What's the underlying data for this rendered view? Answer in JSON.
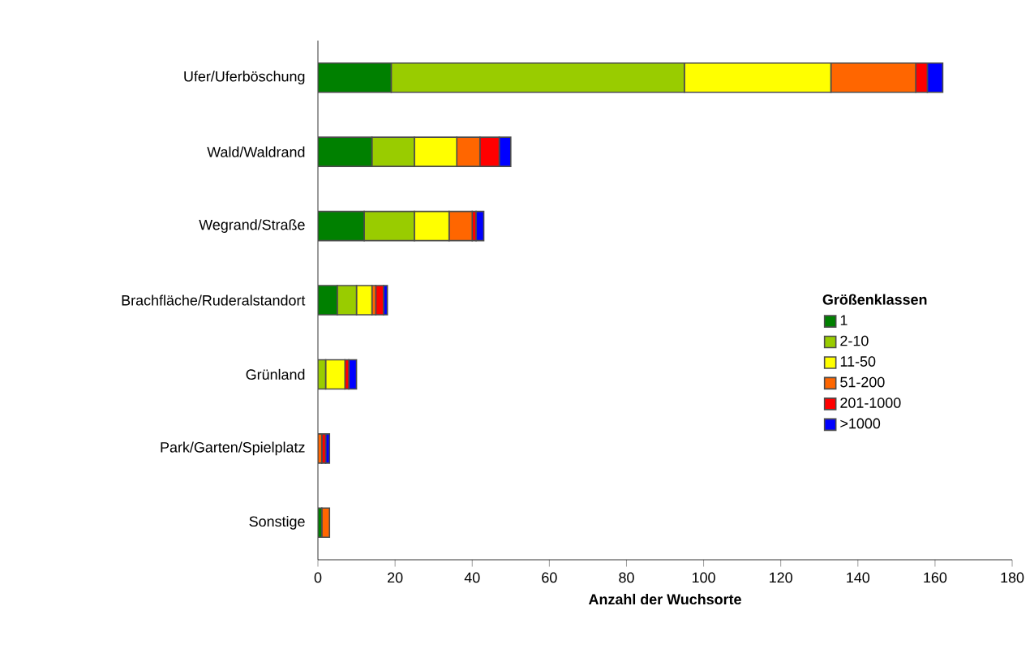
{
  "chart_data": {
    "type": "bar",
    "orientation": "horizontal",
    "stacked": true,
    "xlabel": "Anzahl der Wuchsorte",
    "legend_title": "Größenklassen",
    "legend": "right",
    "grid": false,
    "categories": [
      "Ufer/Uferböschung",
      "Wald/Waldrand",
      "Wegrand/Straße",
      "Brachfläche/Ruderalstandort",
      "Grünland",
      "Park/Garten/Spielplatz",
      "Sonstige"
    ],
    "xlim": [
      0,
      180
    ],
    "xticks": [
      0,
      20,
      40,
      60,
      80,
      100,
      120,
      140,
      160,
      180
    ],
    "series": [
      {
        "name": "1",
        "color": "#008000",
        "values": [
          19,
          14,
          12,
          5,
          0,
          0,
          1
        ]
      },
      {
        "name": "2-10",
        "color": "#99cc00",
        "values": [
          76,
          11,
          13,
          5,
          2,
          0,
          0
        ]
      },
      {
        "name": "11-50",
        "color": "#ffff00",
        "values": [
          38,
          11,
          9,
          4,
          5,
          0,
          0
        ]
      },
      {
        "name": "51-200",
        "color": "#ff6600",
        "values": [
          22,
          6,
          6,
          1,
          0,
          1,
          2
        ]
      },
      {
        "name": "201-1000",
        "color": "#ff0000",
        "values": [
          3,
          5,
          1,
          2,
          1,
          1,
          0
        ]
      },
      {
        "name": ">1000",
        "color": "#0000ff",
        "values": [
          4,
          3,
          2,
          1,
          2,
          1,
          0
        ]
      }
    ]
  }
}
